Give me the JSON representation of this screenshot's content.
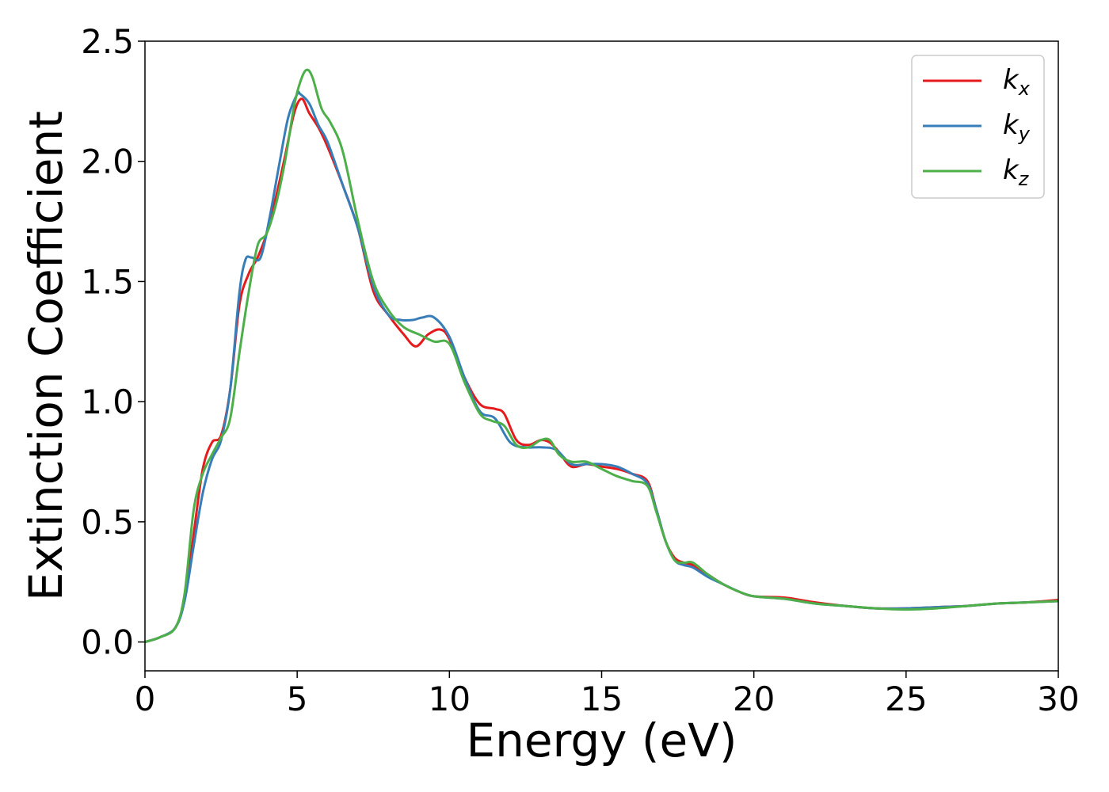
{
  "chart_data": {
    "type": "line",
    "xlabel": "Energy (eV)",
    "ylabel": "Extinction Coefficient",
    "xlim": [
      0,
      30
    ],
    "ylim": [
      -0.12,
      2.5
    ],
    "xticks": [
      "0",
      "5",
      "10",
      "15",
      "20",
      "25",
      "30"
    ],
    "yticks": [
      "0.0",
      "0.5",
      "1.0",
      "1.5",
      "2.0",
      "2.5"
    ],
    "grid": false,
    "legend_position": "top-right",
    "series": [
      {
        "name": "k_x",
        "legend_main": "k",
        "legend_sub": "x",
        "color": "#e41a1c",
        "x": [
          0,
          0.5,
          1,
          1.3,
          1.6,
          1.9,
          2.2,
          2.5,
          2.8,
          3.1,
          3.4,
          3.7,
          4.0,
          4.3,
          4.6,
          4.9,
          5.15,
          5.4,
          5.7,
          6.0,
          6.5,
          7.0,
          7.5,
          8.0,
          8.5,
          8.9,
          9.3,
          9.7,
          10.0,
          10.5,
          11.0,
          11.5,
          11.8,
          12.2,
          12.6,
          13.0,
          13.3,
          13.6,
          14.0,
          14.5,
          15.0,
          15.5,
          16.0,
          16.5,
          16.8,
          17.1,
          17.4,
          17.7,
          18.0,
          18.5,
          19.0,
          19.5,
          20.0,
          21.0,
          22.0,
          23.0,
          24.0,
          25.0,
          26.0,
          27.0,
          28.0,
          29.0,
          30.0
        ],
        "y": [
          0,
          0.02,
          0.06,
          0.18,
          0.45,
          0.72,
          0.83,
          0.86,
          1.05,
          1.4,
          1.53,
          1.6,
          1.7,
          1.85,
          2.02,
          2.2,
          2.26,
          2.2,
          2.14,
          2.06,
          1.9,
          1.72,
          1.46,
          1.36,
          1.28,
          1.23,
          1.28,
          1.3,
          1.26,
          1.1,
          0.99,
          0.97,
          0.95,
          0.84,
          0.82,
          0.84,
          0.83,
          0.79,
          0.73,
          0.74,
          0.73,
          0.72,
          0.7,
          0.67,
          0.55,
          0.42,
          0.35,
          0.33,
          0.32,
          0.28,
          0.24,
          0.21,
          0.19,
          0.185,
          0.165,
          0.15,
          0.14,
          0.14,
          0.145,
          0.15,
          0.16,
          0.165,
          0.175
        ]
      },
      {
        "name": "k_y",
        "legend_main": "k",
        "legend_sub": "y",
        "color": "#377eb8",
        "x": [
          0,
          0.5,
          1,
          1.3,
          1.6,
          1.9,
          2.2,
          2.5,
          2.8,
          3.1,
          3.3,
          3.5,
          3.8,
          4.1,
          4.4,
          4.7,
          5.0,
          5.1,
          5.4,
          5.7,
          6.0,
          6.5,
          7.0,
          7.5,
          8.0,
          8.4,
          8.8,
          9.1,
          9.5,
          10.0,
          10.5,
          11.0,
          11.5,
          12.0,
          12.5,
          13.0,
          13.5,
          14.0,
          14.5,
          15.0,
          15.5,
          16.0,
          16.5,
          16.8,
          17.1,
          17.4,
          17.7,
          18.0,
          18.5,
          19.0,
          19.5,
          20.0,
          21.0,
          22.0,
          23.0,
          24.0,
          25.0,
          26.0,
          27.0,
          28.0,
          29.0,
          30.0
        ],
        "y": [
          0,
          0.02,
          0.06,
          0.17,
          0.4,
          0.62,
          0.76,
          0.84,
          1.05,
          1.45,
          1.59,
          1.6,
          1.6,
          1.77,
          1.98,
          2.18,
          2.28,
          2.28,
          2.24,
          2.15,
          2.08,
          1.9,
          1.72,
          1.48,
          1.36,
          1.34,
          1.34,
          1.35,
          1.35,
          1.27,
          1.1,
          0.96,
          0.93,
          0.83,
          0.81,
          0.81,
          0.8,
          0.74,
          0.74,
          0.74,
          0.73,
          0.7,
          0.66,
          0.55,
          0.42,
          0.34,
          0.32,
          0.31,
          0.27,
          0.24,
          0.21,
          0.19,
          0.18,
          0.16,
          0.15,
          0.14,
          0.14,
          0.145,
          0.15,
          0.16,
          0.165,
          0.17
        ]
      },
      {
        "name": "k_z",
        "legend_main": "k",
        "legend_sub": "z",
        "color": "#4daf4a",
        "x": [
          0,
          0.5,
          1,
          1.3,
          1.6,
          1.9,
          2.2,
          2.5,
          2.8,
          3.1,
          3.4,
          3.7,
          4.0,
          4.3,
          4.6,
          4.9,
          5.1,
          5.3,
          5.5,
          5.8,
          6.1,
          6.5,
          7.0,
          7.5,
          8.0,
          8.5,
          9.0,
          9.5,
          10.0,
          10.5,
          11.0,
          11.4,
          11.8,
          12.2,
          12.6,
          13.0,
          13.3,
          13.6,
          14.0,
          14.5,
          15.0,
          15.5,
          16.0,
          16.5,
          16.8,
          17.1,
          17.4,
          17.7,
          18.0,
          18.5,
          19.0,
          19.5,
          20.0,
          21.0,
          22.0,
          23.0,
          24.0,
          25.0,
          26.0,
          27.0,
          28.0,
          29.0,
          30.0
        ],
        "y": [
          0,
          0.02,
          0.06,
          0.2,
          0.55,
          0.7,
          0.78,
          0.85,
          0.93,
          1.2,
          1.45,
          1.65,
          1.7,
          1.82,
          2.0,
          2.23,
          2.33,
          2.38,
          2.35,
          2.22,
          2.16,
          2.04,
          1.75,
          1.5,
          1.38,
          1.31,
          1.28,
          1.25,
          1.24,
          1.08,
          0.95,
          0.92,
          0.9,
          0.82,
          0.81,
          0.84,
          0.84,
          0.78,
          0.75,
          0.75,
          0.72,
          0.69,
          0.67,
          0.65,
          0.54,
          0.42,
          0.34,
          0.33,
          0.33,
          0.28,
          0.24,
          0.21,
          0.19,
          0.18,
          0.16,
          0.15,
          0.14,
          0.135,
          0.14,
          0.15,
          0.16,
          0.165,
          0.17
        ]
      }
    ]
  }
}
